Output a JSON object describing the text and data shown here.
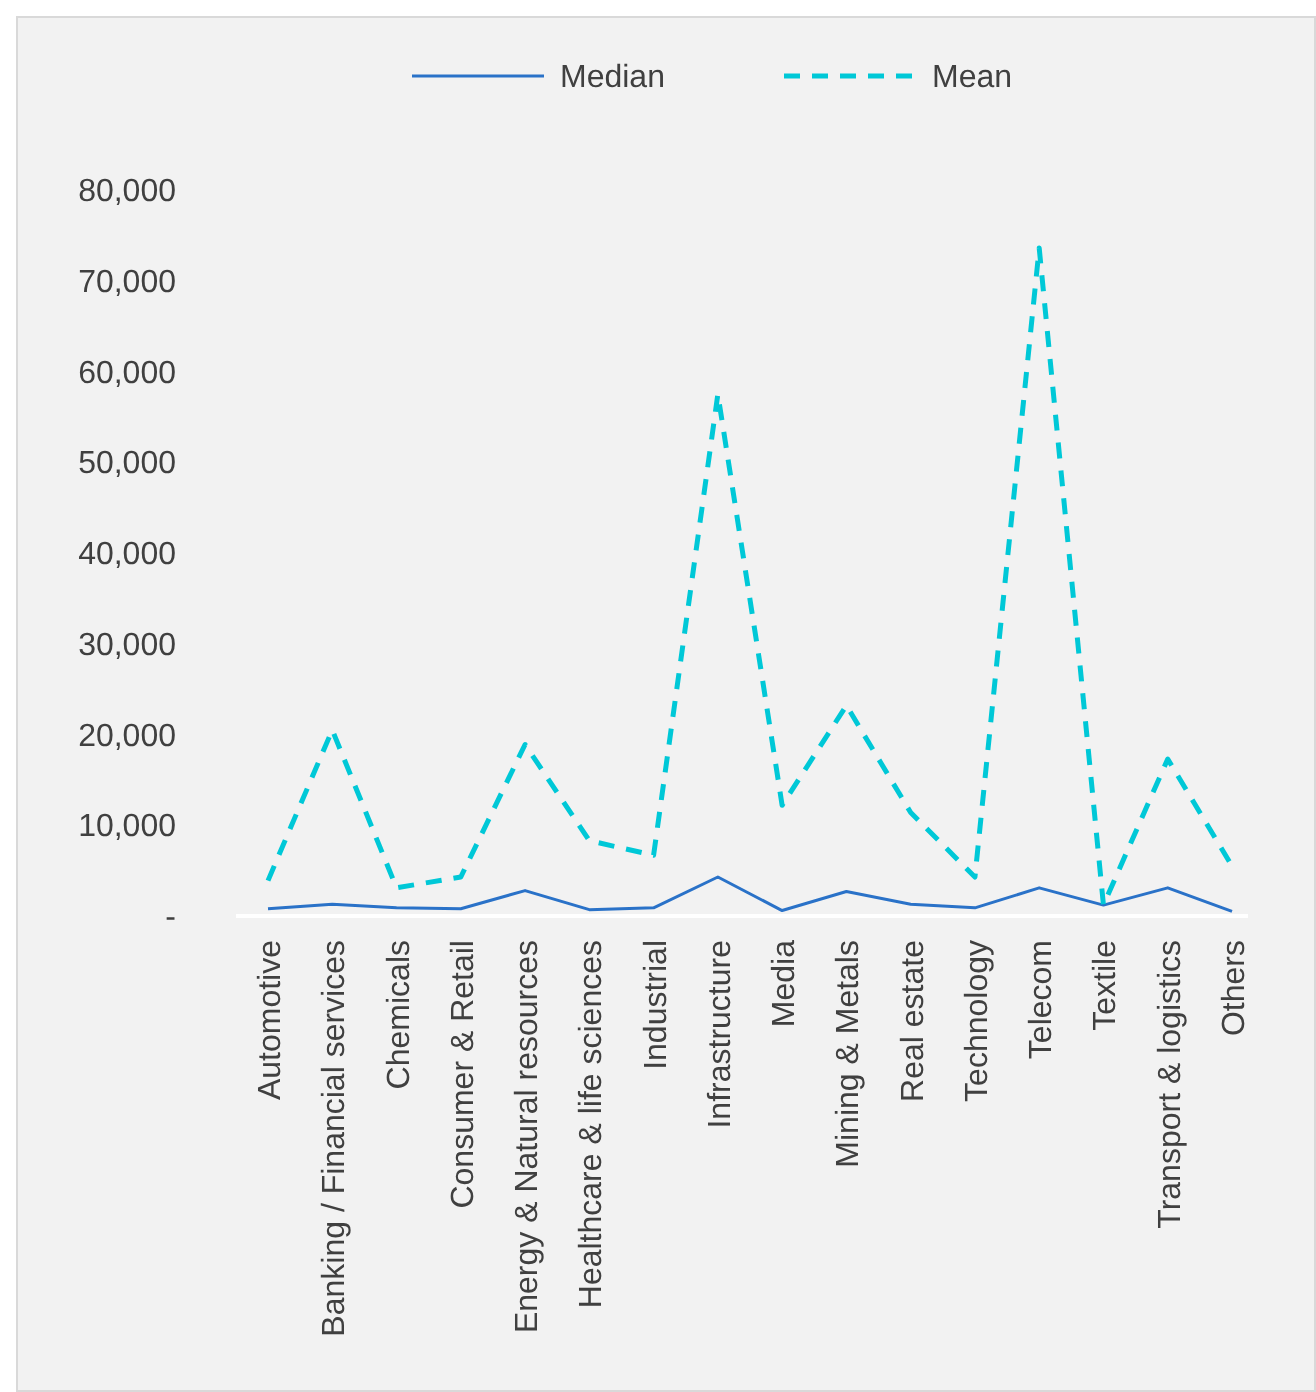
{
  "chart_data": {
    "type": "line",
    "categories": [
      "Automotive",
      "Banking / Financial services",
      "Chemicals",
      "Consumer & Retail",
      "Energy & Natural resources",
      "Healthcare & life sciences",
      "Industrial",
      "Infrastructure",
      "Media",
      "Mining & Metals",
      "Real estate",
      "Technology",
      "Telecom",
      "Textile",
      "Transport & logistics",
      "Others"
    ],
    "series": [
      {
        "name": "Median",
        "color": "#2a72c8",
        "line_style": "solid",
        "values": [
          800,
          1300,
          900,
          800,
          2800,
          700,
          900,
          4300,
          600,
          2700,
          1300,
          900,
          3100,
          1200,
          3100,
          500
        ]
      },
      {
        "name": "Mean",
        "color": "#00c8d7",
        "line_style": "dashed",
        "values": [
          3900,
          20500,
          3100,
          4300,
          18900,
          8300,
          6700,
          57500,
          12200,
          23200,
          11400,
          4300,
          73600,
          1200,
          17300,
          5500
        ]
      }
    ],
    "ylim": [
      0,
      80000
    ],
    "yticks": [
      {
        "value": 0,
        "label": "-"
      },
      {
        "value": 10000,
        "label": "10,000"
      },
      {
        "value": 20000,
        "label": "20,000"
      },
      {
        "value": 30000,
        "label": "30,000"
      },
      {
        "value": 40000,
        "label": "40,000"
      },
      {
        "value": 50000,
        "label": "50,000"
      },
      {
        "value": 60000,
        "label": "60,000"
      },
      {
        "value": 70000,
        "label": "70,000"
      },
      {
        "value": 80000,
        "label": "80,000"
      }
    ],
    "grid": false,
    "legend": "top",
    "marker": "none"
  }
}
